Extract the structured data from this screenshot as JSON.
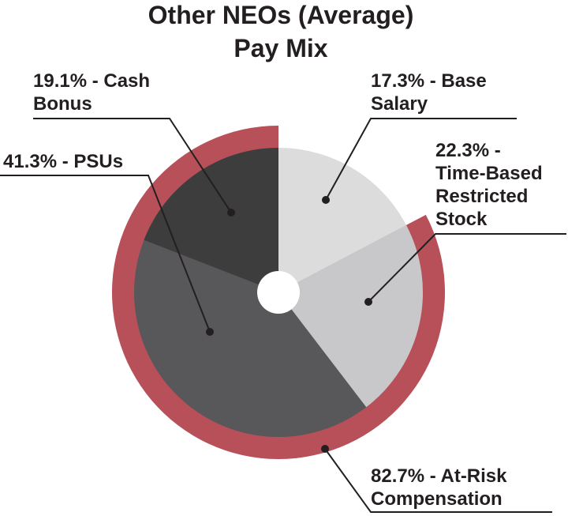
{
  "chart_data": {
    "type": "pie",
    "title": [
      "Other NEOs (Average)",
      "Pay Mix"
    ],
    "slices": [
      {
        "label": [
          "17.3% - Base",
          "Salary"
        ],
        "value": 17.3,
        "color": "#dcdcdd"
      },
      {
        "label": [
          "22.3% -",
          "Time-Based",
          "Restricted",
          "Stock"
        ],
        "value": 22.3,
        "color": "#c8c8ca"
      },
      {
        "label": [
          "41.3% - PSUs"
        ],
        "value": 41.3,
        "color": "#58585a"
      },
      {
        "label": [
          "19.1% - Cash",
          "Bonus"
        ],
        "value": 19.1,
        "color": "#3d3d3e"
      }
    ],
    "outer_ring": {
      "label": [
        "82.7% - At-Risk",
        "Compensation"
      ],
      "value": 82.7,
      "color": "#b8505a"
    },
    "start": "12 o'clock",
    "direction": "clockwise"
  }
}
